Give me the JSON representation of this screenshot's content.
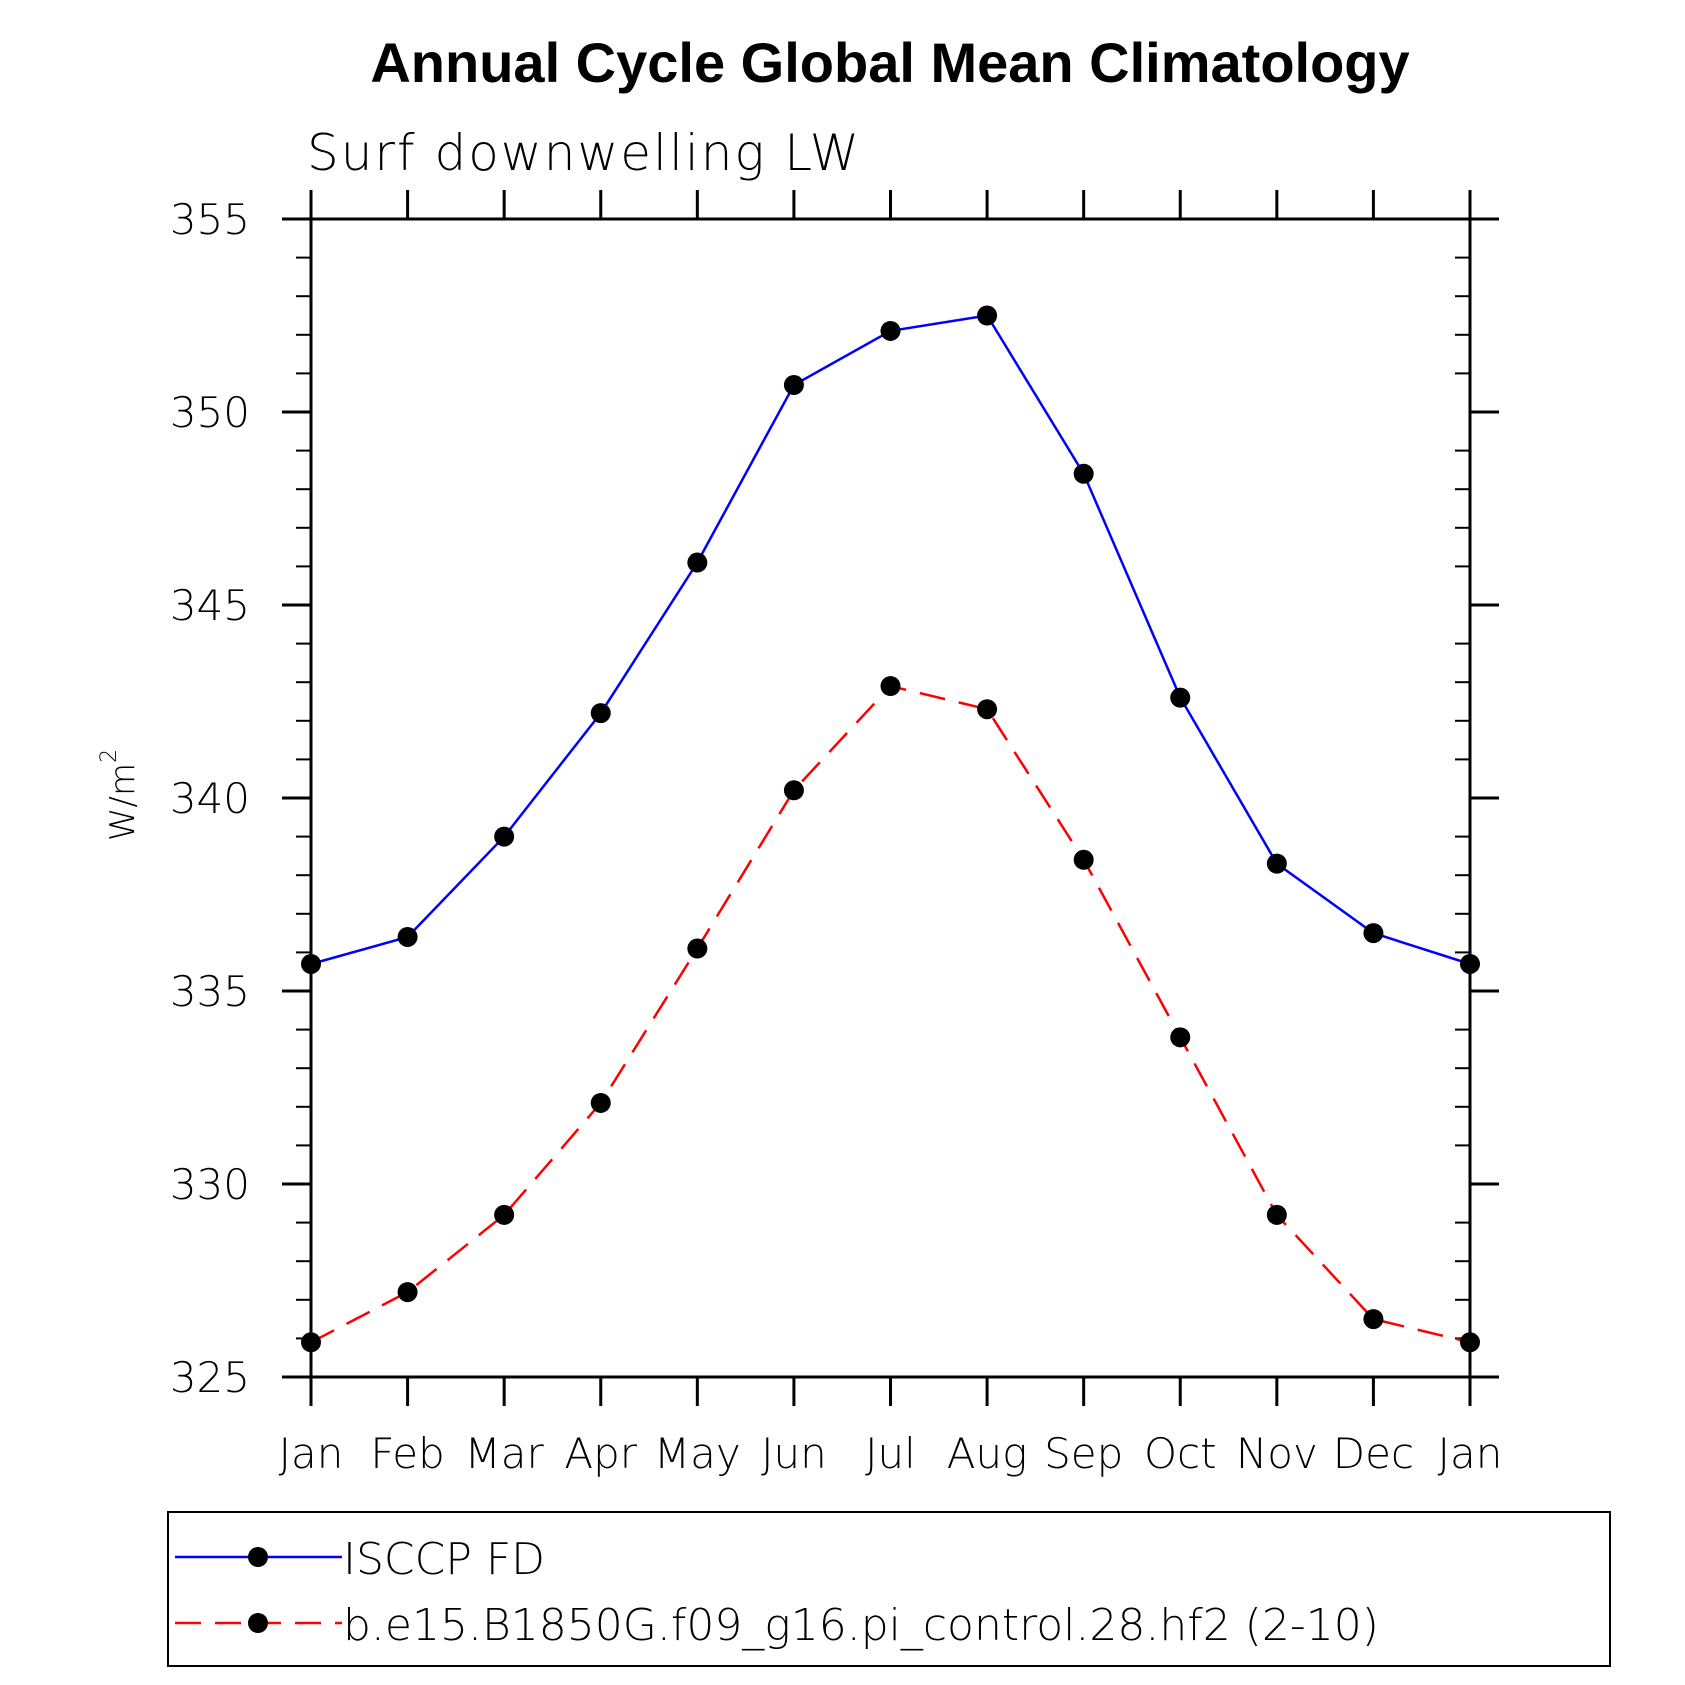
{
  "chart_data": {
    "type": "line",
    "title": "Annual Cycle Global Mean Climatology",
    "subtitle": "Surf downwelling LW",
    "ylabel": "W/m",
    "ylabel_superscript": "2",
    "xlabel": "",
    "ylim": [
      325,
      355
    ],
    "y_major_ticks": [
      325,
      330,
      335,
      340,
      345,
      350,
      355
    ],
    "y_minor_step": 1,
    "categories": [
      "Jan",
      "Feb",
      "Mar",
      "Apr",
      "May",
      "Jun",
      "Jul",
      "Aug",
      "Sep",
      "Oct",
      "Nov",
      "Dec",
      "Jan"
    ],
    "grid": false,
    "legend_position": "bottom",
    "series": [
      {
        "name": "ISCCP FD",
        "color": "#0000ff",
        "dash": "solid",
        "values": [
          335.7,
          336.4,
          339.0,
          342.2,
          346.1,
          350.7,
          352.1,
          352.5,
          348.4,
          342.6,
          338.3,
          336.5,
          335.7
        ]
      },
      {
        "name": "b.e15.B1850G.f09_g16.pi_control.28.hf2 (2-10)",
        "color": "#ff0000",
        "dash": "dashed",
        "values": [
          325.9,
          327.2,
          329.2,
          332.1,
          336.1,
          340.2,
          342.9,
          342.3,
          338.4,
          333.8,
          329.2,
          326.5,
          325.9
        ]
      }
    ]
  }
}
